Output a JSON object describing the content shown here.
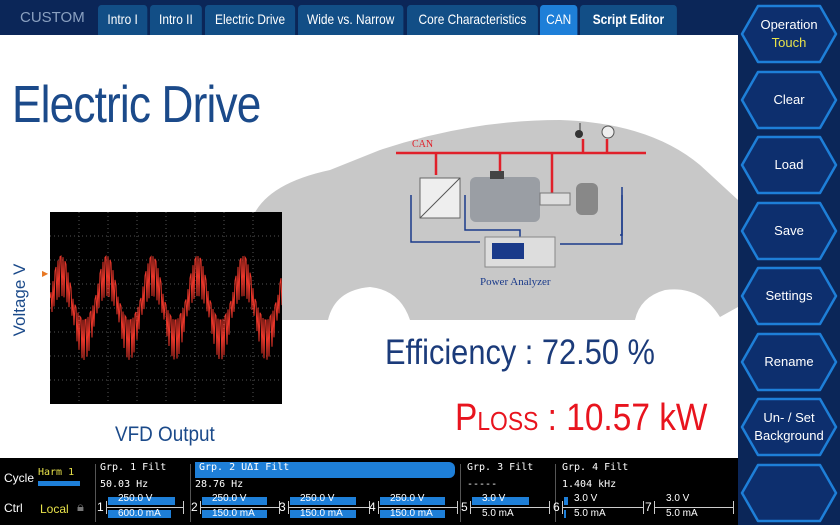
{
  "header": {
    "mode": "CUSTOM",
    "tabs": [
      {
        "label": "Intro I"
      },
      {
        "label": "Intro II"
      },
      {
        "label": "Electric Drive"
      },
      {
        "label": "Wide vs. Narrow"
      },
      {
        "label": "Core Characteristics"
      },
      {
        "label": "CAN",
        "active": true
      },
      {
        "label": "Script Editor"
      }
    ]
  },
  "side": {
    "buttons": [
      {
        "label": "Operation",
        "sub": "Touch"
      },
      {
        "label": "Clear"
      },
      {
        "label": "Load"
      },
      {
        "label": "Save"
      },
      {
        "label": "Settings"
      },
      {
        "label": "Rename"
      },
      {
        "label": "Un- / Set",
        "sub2": "Background"
      },
      {
        "label": ""
      }
    ]
  },
  "main": {
    "title": "Electric Drive",
    "scope_ylabel": "Voltage V",
    "scope_caption": "VFD Output",
    "diagram": {
      "bus_label": "CAN",
      "device_label": "Power Analyzer"
    },
    "efficiency": "Efficiency : 72.50 %",
    "ploss_p": "P",
    "ploss_sub": "LOSS",
    "ploss_value": " : 10.57 kW"
  },
  "status": {
    "cycle_label": "Cycle",
    "cycle_value": "Harm 1",
    "ctrl_label": "Ctrl",
    "ctrl_value": "Local",
    "groups": [
      {
        "name": "Grp. 1",
        "tag": "Filt",
        "freq": "50.03  Hz"
      },
      {
        "name": "Grp. 2",
        "tag": "UΔI  Filt",
        "freq": "28.76  Hz",
        "selected": true
      },
      {
        "name": "Grp. 3",
        "tag": "Filt",
        "freq": "-----"
      },
      {
        "name": "Grp. 4",
        "tag": "Filt",
        "freq": "1.404 kHz"
      }
    ],
    "channels": [
      {
        "n": "1",
        "v": "250.0 V",
        "a": "600.0 mA",
        "vfill": 0.9,
        "afill": 0.85
      },
      {
        "n": "2",
        "v": "250.0 V",
        "a": "150.0 mA",
        "vfill": 0.85,
        "afill": 0.85
      },
      {
        "n": "3",
        "v": "250.0 V",
        "a": "150.0 mA",
        "vfill": 0.85,
        "afill": 0.85
      },
      {
        "n": "4",
        "v": "250.0 V",
        "a": "150.0 mA",
        "vfill": 0.85,
        "afill": 0.85
      },
      {
        "n": "5",
        "v": "3.0 V",
        "a": "5.0 mA",
        "vfill": 0.75,
        "afill": 0.0
      },
      {
        "n": "6",
        "v": "3.0 V",
        "a": "5.0 mA",
        "vfill": 0.05,
        "afill": 0.02
      },
      {
        "n": "7",
        "v": "3.0 V",
        "a": "5.0 mA",
        "vfill": 0.0,
        "afill": 0.0
      }
    ]
  },
  "colors": {
    "accent": "#1e7fd8",
    "navy": "#0b2658",
    "title": "#1b4a8a",
    "ploss": "#e8141e",
    "can": "#e0202a",
    "highlight": "#e8e24a"
  }
}
